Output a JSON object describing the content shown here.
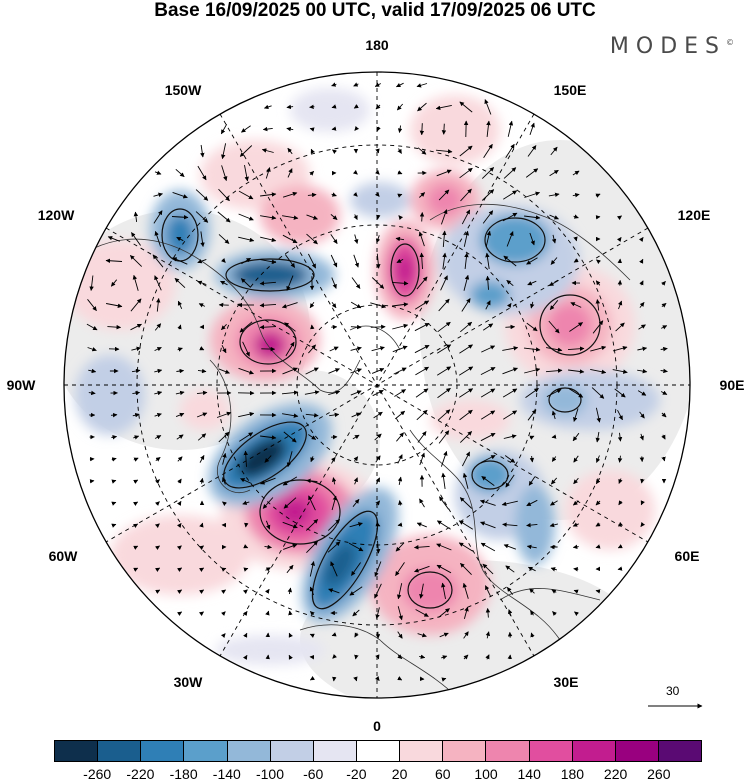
{
  "title": "Base 16/09/2025 00 UTC, valid 17/09/2025 06 UTC",
  "brand": "MODES",
  "brand_mark": "©",
  "lon_labels": {
    "n180": "180",
    "w150": "150W",
    "e150": "150E",
    "w120": "120W",
    "e120": "120E",
    "w90": "90W",
    "e90": "90E",
    "w60": "60W",
    "e60": "60E",
    "w30": "30W",
    "e30": "30E",
    "s0": "0"
  },
  "reference_vector": "30",
  "colorbar": {
    "colors": [
      "#0e2f4c",
      "#1a5e8e",
      "#2f7fb6",
      "#5b9fcb",
      "#93b8d9",
      "#c2cfe6",
      "#e5e5f2",
      "#ffffff",
      "#f9d9dd",
      "#f5b3c1",
      "#ee85ae",
      "#e14e9f",
      "#c21d8f",
      "#99007f",
      "#5a0a73"
    ],
    "ticks": [
      "-260",
      "-220",
      "-180",
      "-140",
      "-100",
      "-60",
      "-20",
      "20",
      "60",
      "100",
      "140",
      "180",
      "220",
      "260"
    ]
  }
}
